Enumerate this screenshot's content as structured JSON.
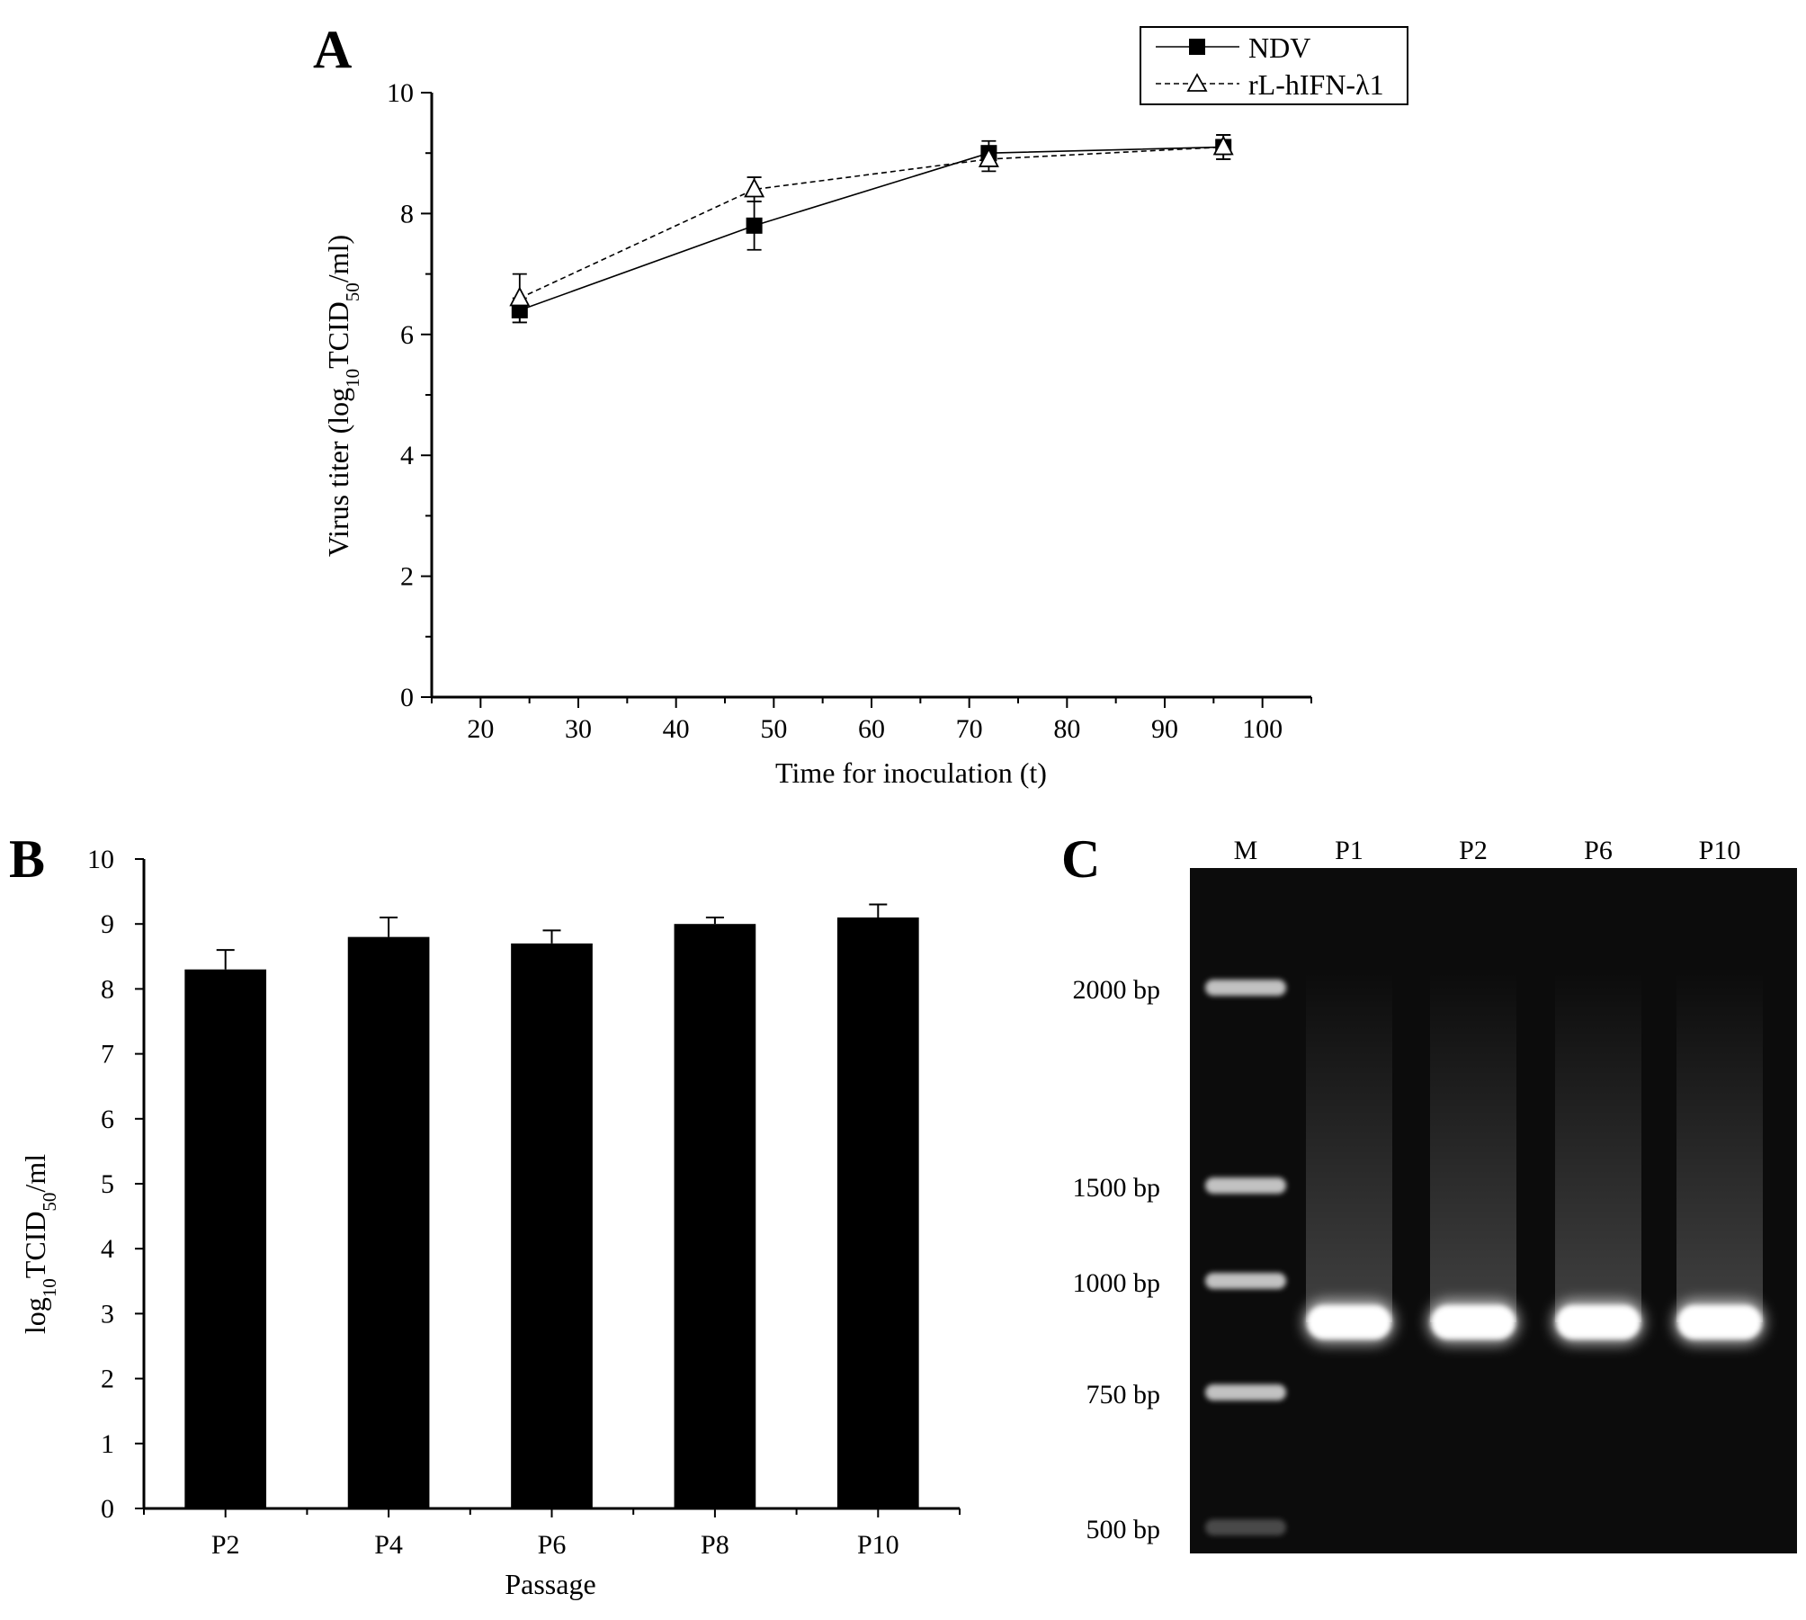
{
  "panels": {
    "a": {
      "letter": "A"
    },
    "b": {
      "letter": "B"
    },
    "c": {
      "letter": "C"
    }
  },
  "chart_data": [
    {
      "panel": "A",
      "type": "line",
      "xlabel": "Time for inoculation (t)",
      "ylabel_parts": [
        "Virus titer (log",
        "10",
        "TCID",
        "50",
        "/ml)"
      ],
      "xlim": [
        15,
        105
      ],
      "ylim": [
        0,
        10
      ],
      "xticks": [
        20,
        30,
        40,
        50,
        60,
        70,
        80,
        90,
        100
      ],
      "yticks": [
        0,
        2,
        4,
        6,
        8,
        10
      ],
      "grid": false,
      "legend_position": "top-right",
      "series": [
        {
          "name": "NDV",
          "marker": "filled-square",
          "line": "solid",
          "x": [
            24,
            48,
            72,
            96
          ],
          "y": [
            6.4,
            7.8,
            9.0,
            9.1
          ],
          "err": [
            0.2,
            0.4,
            0.2,
            0.2
          ]
        },
        {
          "name": "rL-hIFN-λ1",
          "marker": "open-triangle",
          "line": "dashed",
          "x": [
            24,
            48,
            72,
            96
          ],
          "y": [
            6.6,
            8.4,
            8.9,
            9.1
          ],
          "err": [
            0.4,
            0.2,
            0.2,
            0.2
          ]
        }
      ]
    },
    {
      "panel": "B",
      "type": "bar",
      "xlabel": "Passage",
      "ylabel_parts": [
        "log",
        "10",
        "TCID",
        "50",
        "/ml"
      ],
      "categories": [
        "P2",
        "P4",
        "P6",
        "P8",
        "P10"
      ],
      "values": [
        8.3,
        8.8,
        8.7,
        9.0,
        9.1
      ],
      "err": [
        0.3,
        0.3,
        0.2,
        0.1,
        0.2
      ],
      "ylim": [
        0,
        10
      ],
      "yticks": [
        0,
        1,
        2,
        3,
        4,
        5,
        6,
        7,
        8,
        9,
        10
      ],
      "bar_color": "#000000",
      "grid": false
    }
  ],
  "gel": {
    "lanes": [
      "M",
      "P1",
      "P2",
      "P6",
      "P10"
    ],
    "ladder": [
      {
        "label": "2000 bp",
        "value": 2000
      },
      {
        "label": "1500 bp",
        "value": 1500
      },
      {
        "label": "1000 bp",
        "value": 1000
      },
      {
        "label": "750 bp",
        "value": 750
      },
      {
        "label": "500 bp",
        "value": 500
      }
    ],
    "background_color": "#0c0c0c",
    "band_color": "#ffffff"
  }
}
